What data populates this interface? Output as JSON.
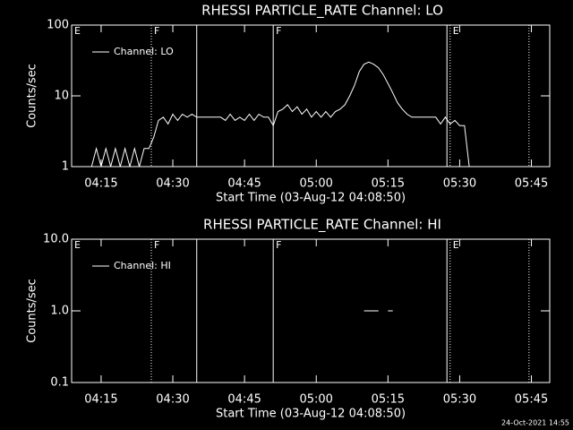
{
  "chart_data": [
    {
      "type": "line",
      "title": "RHESSI PARTICLE_RATE Channel: LO",
      "xlabel": "Start Time (03-Aug-12 04:08:50)",
      "ylabel": "Counts/sec",
      "xlim": [
        "04:08:50",
        "05:48:50"
      ],
      "xticks": [
        "04:15",
        "04:30",
        "04:45",
        "05:00",
        "05:15",
        "05:30",
        "05:45"
      ],
      "ylim": [
        1,
        100
      ],
      "yticks": [
        1,
        10,
        100
      ],
      "log_y": true,
      "legend": "top-left",
      "markers": [
        {
          "x": "04:08:50",
          "label": "E"
        },
        {
          "x": "04:25:30",
          "style": "dotted",
          "label": "F"
        },
        {
          "x": "04:35:00",
          "style": "solid"
        },
        {
          "x": "04:51:00",
          "style": "solid",
          "label": "F"
        },
        {
          "x": "05:27:20",
          "style": "solid"
        },
        {
          "x": "05:28:00",
          "style": "dotted",
          "label": "E"
        },
        {
          "x": "05:44:30",
          "style": "dotted"
        }
      ],
      "x": [
        "04:13",
        "04:14",
        "04:15",
        "04:16",
        "04:17",
        "04:18",
        "04:19",
        "04:20",
        "04:21",
        "04:22",
        "04:23",
        "04:24",
        "04:25",
        "04:26",
        "04:27",
        "04:28",
        "04:29",
        "04:30",
        "04:31",
        "04:32",
        "04:33",
        "04:34",
        "04:35",
        "04:36",
        "04:37",
        "04:38",
        "04:39",
        "04:40",
        "04:41",
        "04:42",
        "04:43",
        "04:44",
        "04:45",
        "04:46",
        "04:47",
        "04:48",
        "04:49",
        "04:50",
        "04:51",
        "04:52",
        "04:53",
        "04:54",
        "04:55",
        "04:56",
        "04:57",
        "04:58",
        "04:59",
        "05:00",
        "05:01",
        "05:02",
        "05:03",
        "05:04",
        "05:05",
        "05:06",
        "05:07",
        "05:08",
        "05:09",
        "05:10",
        "05:11",
        "05:12",
        "05:13",
        "05:14",
        "05:15",
        "05:16",
        "05:17",
        "05:18",
        "05:19",
        "05:20",
        "05:21",
        "05:22",
        "05:23",
        "05:24",
        "05:25",
        "05:26",
        "05:27",
        "05:28",
        "05:29",
        "05:30",
        "05:31",
        "05:32"
      ],
      "series": [
        {
          "name": "Channel: LO",
          "color": "#ffffff",
          "values": [
            1,
            1.8,
            1,
            1.8,
            1,
            1.8,
            1,
            1.8,
            1,
            1.8,
            1,
            1.8,
            1.8,
            2.6,
            4.5,
            5,
            4,
            5.5,
            4.5,
            5.5,
            5,
            5.5,
            5,
            5,
            5,
            5,
            5,
            5,
            4.5,
            5.5,
            4.5,
            5,
            4.5,
            5.5,
            4.5,
            5.5,
            5,
            5,
            3.8,
            6,
            6.5,
            7.5,
            6,
            7,
            5.5,
            6.5,
            5,
            6,
            5,
            6,
            5,
            6,
            6.5,
            7.5,
            10,
            14,
            22,
            28,
            30,
            28,
            25,
            20,
            15,
            11,
            8,
            6.5,
            5.5,
            5,
            5,
            5,
            5,
            5,
            5,
            4,
            5,
            4,
            4.5,
            3.8,
            3.8,
            1
          ]
        }
      ]
    },
    {
      "type": "line",
      "title": "RHESSI PARTICLE_RATE Channel: HI",
      "xlabel": "Start Time (03-Aug-12 04:08:50)",
      "ylabel": "Counts/sec",
      "xlim": [
        "04:08:50",
        "05:48:50"
      ],
      "xticks": [
        "04:15",
        "04:30",
        "04:45",
        "05:00",
        "05:15",
        "05:30",
        "05:45"
      ],
      "ylim": [
        0.1,
        10
      ],
      "yticks": [
        0.1,
        {
          "value": 1,
          "label": "1.0"
        },
        {
          "value": 10,
          "label": "10.0"
        }
      ],
      "log_y": true,
      "legend": "top-left",
      "markers": [
        {
          "x": "04:08:50",
          "label": "E"
        },
        {
          "x": "04:25:30",
          "style": "dotted",
          "label": "F"
        },
        {
          "x": "04:35:00",
          "style": "solid"
        },
        {
          "x": "04:51:00",
          "style": "solid",
          "label": "F"
        },
        {
          "x": "05:27:20",
          "style": "solid"
        },
        {
          "x": "05:28:00",
          "style": "dotted",
          "label": "E"
        },
        {
          "x": "05:44:30",
          "style": "dotted"
        }
      ],
      "x": [
        "05:10",
        "05:11",
        "05:12",
        "05:13",
        "05:14",
        "05:15",
        "05:16",
        "05:17"
      ],
      "series": [
        {
          "name": "Channel: HI",
          "color": "#ffffff",
          "values": [
            1,
            1,
            1,
            1,
            null,
            1,
            1,
            null
          ]
        }
      ]
    }
  ],
  "footer": "24-Oct-2021 14:55"
}
